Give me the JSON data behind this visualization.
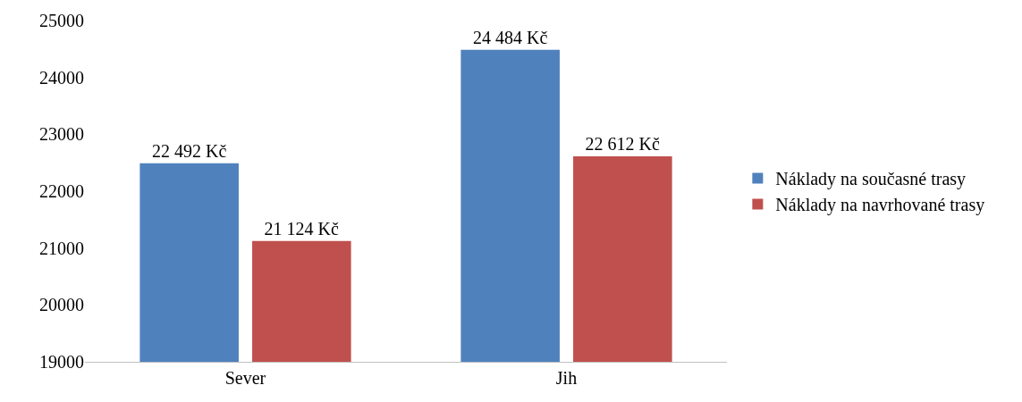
{
  "chart_data": {
    "type": "bar",
    "categories": [
      "Sever",
      "Jih"
    ],
    "series": [
      {
        "name": "Náklady na současné trasy",
        "color": "#4f81bd",
        "values": [
          22492,
          24484
        ],
        "value_labels": [
          "22 492 Kč",
          "24 484 Kč"
        ]
      },
      {
        "name": "Náklady na navrhované trasy",
        "color": "#c0504d",
        "values": [
          21124,
          22612
        ],
        "value_labels": [
          "21 124 Kč",
          "22 612 Kč"
        ]
      }
    ],
    "ylim": [
      19000,
      25000
    ],
    "yticks": [
      19000,
      20000,
      21000,
      22000,
      23000,
      24000,
      25000
    ],
    "grid": false,
    "legend": "right"
  }
}
